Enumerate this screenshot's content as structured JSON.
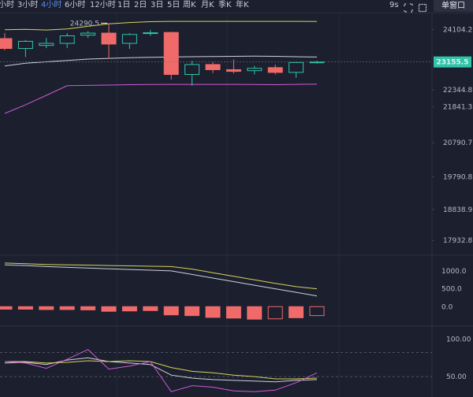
{
  "toolbar": {
    "timeframes": [
      "小时",
      "3小时",
      "4小时",
      "6小时",
      "12小时",
      "1日",
      "2日",
      "3日",
      "5日",
      "周K",
      "月K",
      "季K",
      "年K"
    ],
    "active_index": 2,
    "countdown": "9s",
    "window_label": "单窗口"
  },
  "colors": {
    "up": "#2fc5a9",
    "down": "#f06a6a",
    "bg": "#1b1f2e",
    "grid": "#262b3b",
    "boll_upper": "#d8d35a",
    "boll_mid": "#d0d2da",
    "boll_lower": "#d25ad6",
    "current_price_bg": "#2fc5a9"
  },
  "chart_data": {
    "type": "candlestick",
    "price_axis": {
      "ticks": [
        24104.2,
        22344.8,
        21841.3,
        20790.7,
        19790.8,
        18838.9,
        17932.8
      ],
      "range": [
        17500,
        24600
      ]
    },
    "current_price": 23155.5,
    "high_annotation": "24290.5",
    "candles": [
      {
        "o": 23840,
        "h": 24000,
        "l": 23500,
        "c": 23550
      },
      {
        "o": 23550,
        "h": 23800,
        "l": 23300,
        "c": 23760
      },
      {
        "o": 23640,
        "h": 23860,
        "l": 23560,
        "c": 23700
      },
      {
        "o": 23700,
        "h": 24000,
        "l": 23560,
        "c": 23920
      },
      {
        "o": 23940,
        "h": 24060,
        "l": 23860,
        "c": 24000
      },
      {
        "o": 24000,
        "h": 24290.5,
        "l": 23250,
        "c": 23680
      },
      {
        "o": 23700,
        "h": 24000,
        "l": 23540,
        "c": 23960
      },
      {
        "o": 23990,
        "h": 24090,
        "l": 23920,
        "c": 24010
      },
      {
        "o": 24020,
        "h": 24040,
        "l": 22640,
        "c": 22790
      },
      {
        "o": 22790,
        "h": 23190,
        "l": 22460,
        "c": 23080
      },
      {
        "o": 23080,
        "h": 23160,
        "l": 22830,
        "c": 22930
      },
      {
        "o": 22930,
        "h": 23230,
        "l": 22820,
        "c": 22880
      },
      {
        "o": 22900,
        "h": 23040,
        "l": 22790,
        "c": 22970
      },
      {
        "o": 22990,
        "h": 23080,
        "l": 22790,
        "c": 22850
      },
      {
        "o": 22850,
        "h": 23160,
        "l": 22690,
        "c": 23140
      },
      {
        "o": 23140,
        "h": 23190,
        "l": 23110,
        "c": 23155.5
      }
    ],
    "boll_upper": [
      24100,
      24110,
      24090,
      24120,
      24200,
      24270,
      24310,
      24335,
      24345,
      24345,
      24345,
      24345,
      24345,
      24345,
      24345,
      24340
    ],
    "boll_mid": [
      23040,
      23120,
      23160,
      23200,
      23240,
      23260,
      23280,
      23290,
      23300,
      23310,
      23315,
      23320,
      23325,
      23320,
      23310,
      23300
    ],
    "boll_lower": [
      21650,
      21900,
      22180,
      22460,
      22470,
      22480,
      22490,
      22495,
      22500,
      22500,
      22500,
      22500,
      22495,
      22490,
      22500,
      22505
    ],
    "macd": {
      "ticks": [
        1000.0,
        500.0,
        0.0
      ],
      "range": [
        -500,
        1350
      ],
      "dif": [
        1170,
        1150,
        1120,
        1100,
        1080,
        1060,
        1040,
        1020,
        1000,
        900,
        800,
        700,
        600,
        500,
        400,
        300
      ],
      "dea": [
        1220,
        1200,
        1180,
        1170,
        1160,
        1150,
        1140,
        1130,
        1120,
        1050,
        950,
        850,
        750,
        650,
        560,
        500
      ],
      "hist": [
        -70,
        -70,
        -80,
        -80,
        -90,
        -130,
        -120,
        -110,
        -230,
        -250,
        -300,
        -320,
        -350,
        -340,
        -310,
        -250
      ]
    },
    "osc": {
      "ticks": [
        100.0,
        50.0
      ],
      "range": [
        25,
        115
      ],
      "reference": 82,
      "line_white": [
        68,
        69,
        66,
        72,
        75,
        70,
        68,
        66,
        52,
        48,
        46,
        45,
        44,
        43,
        45,
        46
      ],
      "line_yellow": [
        70,
        70,
        68,
        69,
        71,
        70,
        71,
        70,
        62,
        57,
        55,
        52,
        50,
        47,
        47,
        48
      ],
      "line_pink": [
        70,
        68,
        61,
        73,
        86,
        60,
        64,
        70,
        30,
        38,
        36,
        31,
        30,
        32,
        42,
        55
      ]
    }
  }
}
